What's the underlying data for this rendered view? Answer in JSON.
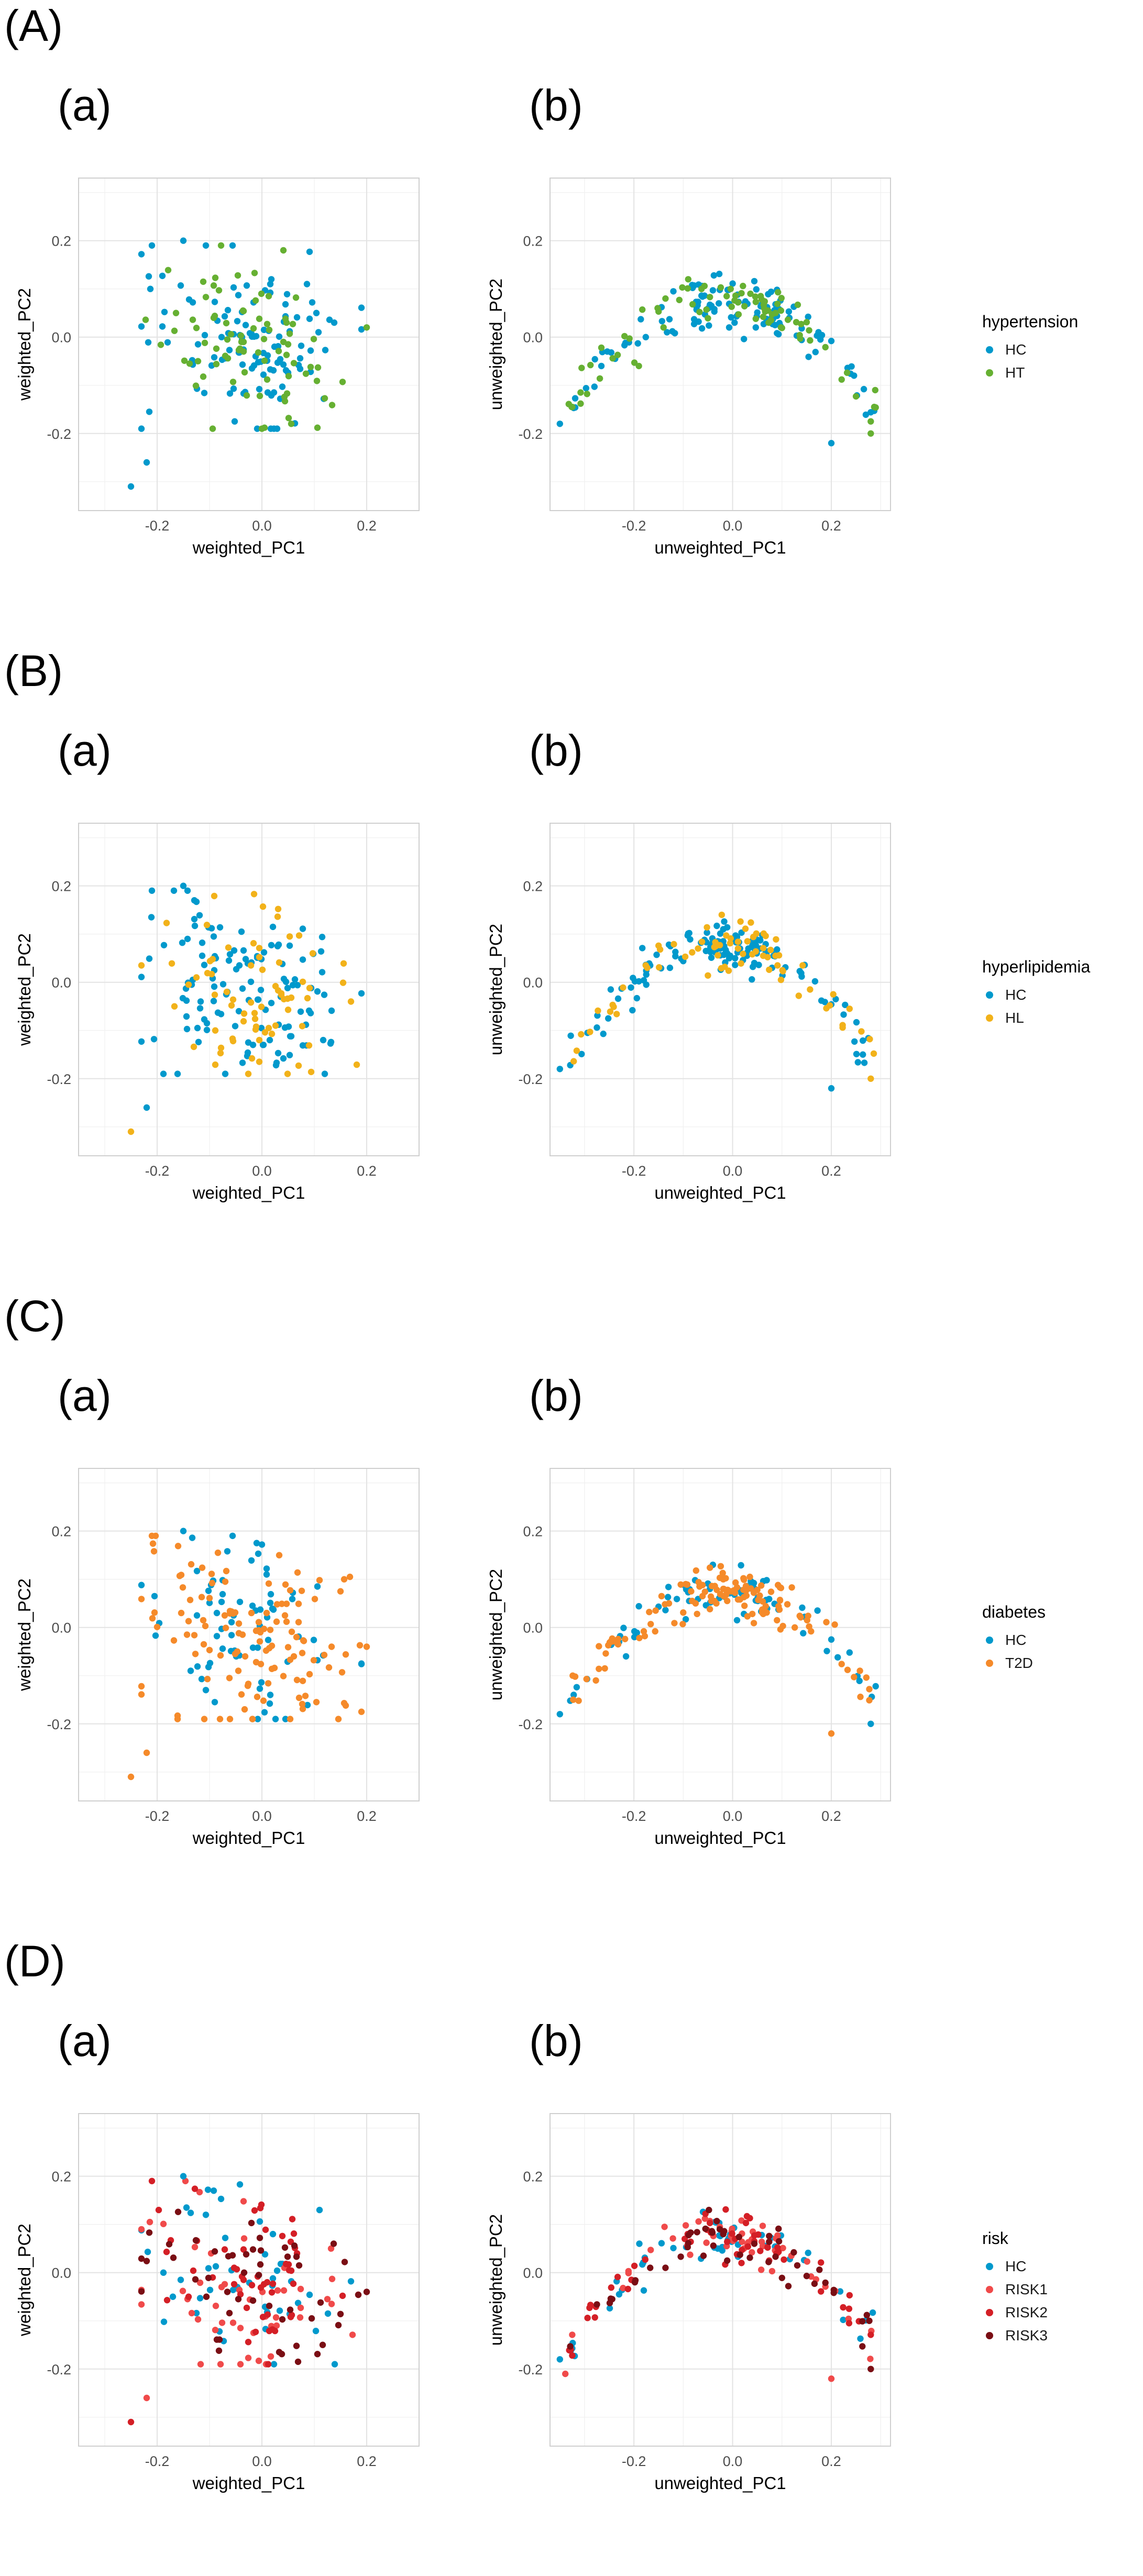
{
  "chart_data": [
    {
      "id": "A",
      "label": "(A)",
      "type": "scatter",
      "legend": {
        "title": "hypertension",
        "groups": [
          {
            "name": "HC",
            "color": "#0099cc"
          },
          {
            "name": "HT",
            "color": "#66b032"
          }
        ]
      },
      "panels": [
        {
          "label": "(a)",
          "xlabel": "weighted_PC1",
          "ylabel": "weighted_PC2",
          "xlim": [
            -0.35,
            0.3
          ],
          "ylim": [
            -0.36,
            0.33
          ],
          "xticks": [
            "-0.2",
            "0.0",
            "0.2"
          ],
          "yticks": [
            "-0.2",
            "0.0",
            "0.2"
          ],
          "kind": "weighted",
          "series_counts": [
            118,
            82
          ],
          "extra_points": [
            {
              "x": -0.25,
              "y": -0.31,
              "g": 0
            },
            {
              "x": -0.22,
              "y": -0.26,
              "g": 0
            },
            {
              "x": -0.21,
              "y": 0.19,
              "g": 0
            },
            {
              "x": -0.15,
              "y": 0.2,
              "g": 0
            },
            {
              "x": 0.2,
              "y": 0.02,
              "g": 1
            }
          ]
        },
        {
          "label": "(b)",
          "xlabel": "unweighted_PC1",
          "ylabel": "unweighted_PC2",
          "xlim": [
            -0.37,
            0.32
          ],
          "ylim": [
            -0.36,
            0.33
          ],
          "xticks": [
            "-0.2",
            "0.0",
            "0.2"
          ],
          "yticks": [
            "-0.2",
            "0.0",
            "0.2"
          ],
          "kind": "unweighted",
          "series_counts": [
            118,
            82
          ],
          "extra_points": [
            {
              "x": -0.35,
              "y": -0.18,
              "g": 0
            },
            {
              "x": 0.28,
              "y": -0.2,
              "g": 1
            },
            {
              "x": 0.2,
              "y": -0.22,
              "g": 0
            }
          ]
        }
      ]
    },
    {
      "id": "B",
      "label": "(B)",
      "type": "scatter",
      "legend": {
        "title": "hyperlipidemia",
        "groups": [
          {
            "name": "HC",
            "color": "#0099cc"
          },
          {
            "name": "HL",
            "color": "#f2b21a"
          }
        ]
      },
      "panels": [
        {
          "label": "(a)",
          "xlabel": "weighted_PC1",
          "ylabel": "weighted_PC2",
          "xlim": [
            -0.35,
            0.3
          ],
          "ylim": [
            -0.36,
            0.33
          ],
          "xticks": [
            "-0.2",
            "0.0",
            "0.2"
          ],
          "yticks": [
            "-0.2",
            "0.0",
            "0.2"
          ],
          "kind": "weighted",
          "series_counts": [
            128,
            72
          ],
          "extra_points": [
            {
              "x": -0.25,
              "y": -0.31,
              "g": 1
            },
            {
              "x": -0.22,
              "y": -0.26,
              "g": 0
            },
            {
              "x": -0.21,
              "y": 0.19,
              "g": 0
            },
            {
              "x": -0.15,
              "y": 0.2,
              "g": 0
            },
            {
              "x": 0.17,
              "y": -0.04,
              "g": 1
            }
          ]
        },
        {
          "label": "(b)",
          "xlabel": "unweighted_PC1",
          "ylabel": "unweighted_PC2",
          "xlim": [
            -0.37,
            0.32
          ],
          "ylim": [
            -0.36,
            0.33
          ],
          "xticks": [
            "-0.2",
            "0.0",
            "0.2"
          ],
          "yticks": [
            "-0.2",
            "0.0",
            "0.2"
          ],
          "kind": "unweighted",
          "series_counts": [
            128,
            72
          ],
          "extra_points": [
            {
              "x": -0.35,
              "y": -0.18,
              "g": 0
            },
            {
              "x": 0.28,
              "y": -0.2,
              "g": 1
            },
            {
              "x": 0.2,
              "y": -0.22,
              "g": 0
            }
          ]
        }
      ]
    },
    {
      "id": "C",
      "label": "(C)",
      "type": "scatter",
      "legend": {
        "title": "diabetes",
        "groups": [
          {
            "name": "HC",
            "color": "#0099cc"
          },
          {
            "name": "T2D",
            "color": "#f58a2a"
          }
        ]
      },
      "panels": [
        {
          "label": "(a)",
          "xlabel": "weighted_PC1",
          "ylabel": "weighted_PC2",
          "xlim": [
            -0.35,
            0.3
          ],
          "ylim": [
            -0.36,
            0.33
          ],
          "xticks": [
            "-0.2",
            "0.0",
            "0.2"
          ],
          "yticks": [
            "-0.2",
            "0.0",
            "0.2"
          ],
          "kind": "weighted",
          "series_counts": [
            72,
            128
          ],
          "extra_points": [
            {
              "x": -0.25,
              "y": -0.31,
              "g": 1
            },
            {
              "x": -0.22,
              "y": -0.26,
              "g": 1
            },
            {
              "x": -0.21,
              "y": 0.19,
              "g": 1
            },
            {
              "x": -0.15,
              "y": 0.2,
              "g": 0
            },
            {
              "x": 0.2,
              "y": -0.04,
              "g": 1
            }
          ]
        },
        {
          "label": "(b)",
          "xlabel": "unweighted_PC1",
          "ylabel": "unweighted_PC2",
          "xlim": [
            -0.37,
            0.32
          ],
          "ylim": [
            -0.36,
            0.33
          ],
          "xticks": [
            "-0.2",
            "0.0",
            "0.2"
          ],
          "yticks": [
            "-0.2",
            "0.0",
            "0.2"
          ],
          "kind": "unweighted",
          "series_counts": [
            72,
            128
          ],
          "extra_points": [
            {
              "x": -0.35,
              "y": -0.18,
              "g": 0
            },
            {
              "x": 0.28,
              "y": -0.2,
              "g": 0
            },
            {
              "x": 0.2,
              "y": -0.22,
              "g": 1
            }
          ]
        }
      ]
    },
    {
      "id": "D",
      "label": "(D)",
      "type": "scatter",
      "legend": {
        "title": "risk",
        "groups": [
          {
            "name": "HC",
            "color": "#0099cc"
          },
          {
            "name": "RISK1",
            "color": "#f04a4a"
          },
          {
            "name": "RISK2",
            "color": "#d41f26"
          },
          {
            "name": "RISK3",
            "color": "#7a0e14"
          }
        ]
      },
      "panels": [
        {
          "label": "(a)",
          "xlabel": "weighted_PC1",
          "ylabel": "weighted_PC2",
          "xlim": [
            -0.35,
            0.3
          ],
          "ylim": [
            -0.36,
            0.33
          ],
          "xticks": [
            "-0.2",
            "0.0",
            "0.2"
          ],
          "yticks": [
            "-0.2",
            "0.0",
            "0.2"
          ],
          "kind": "weighted",
          "series_counts": [
            48,
            50,
            52,
            50
          ],
          "extra_points": [
            {
              "x": -0.25,
              "y": -0.31,
              "g": 2
            },
            {
              "x": -0.22,
              "y": -0.26,
              "g": 1
            },
            {
              "x": -0.21,
              "y": 0.19,
              "g": 2
            },
            {
              "x": -0.15,
              "y": 0.2,
              "g": 0
            },
            {
              "x": 0.2,
              "y": -0.04,
              "g": 3
            }
          ]
        },
        {
          "label": "(b)",
          "xlabel": "unweighted_PC1",
          "ylabel": "unweighted_PC2",
          "xlim": [
            -0.37,
            0.32
          ],
          "ylim": [
            -0.36,
            0.33
          ],
          "xticks": [
            "-0.2",
            "0.0",
            "0.2"
          ],
          "yticks": [
            "-0.2",
            "0.0",
            "0.2"
          ],
          "kind": "unweighted",
          "series_counts": [
            48,
            50,
            52,
            50
          ],
          "extra_points": [
            {
              "x": -0.35,
              "y": -0.18,
              "g": 0
            },
            {
              "x": 0.28,
              "y": -0.2,
              "g": 3
            },
            {
              "x": 0.2,
              "y": -0.22,
              "g": 1
            }
          ]
        }
      ]
    }
  ]
}
